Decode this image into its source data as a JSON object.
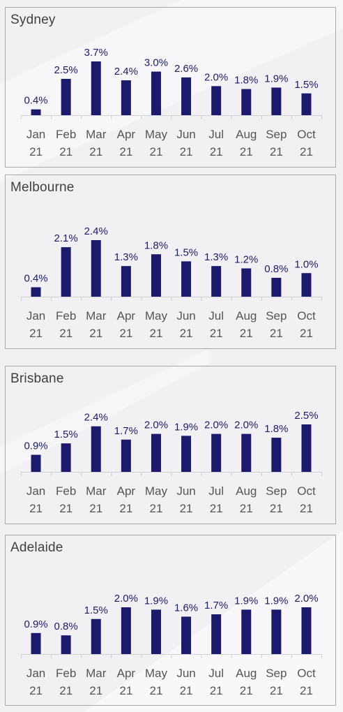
{
  "months": [
    {
      "m": "Jan",
      "y": "21"
    },
    {
      "m": "Feb",
      "y": "21"
    },
    {
      "m": "Mar",
      "y": "21"
    },
    {
      "m": "Apr",
      "y": "21"
    },
    {
      "m": "May",
      "y": "21"
    },
    {
      "m": "Jun",
      "y": "21"
    },
    {
      "m": "Jul",
      "y": "21"
    },
    {
      "m": "Aug",
      "y": "21"
    },
    {
      "m": "Sep",
      "y": "21"
    },
    {
      "m": "Oct",
      "y": "21"
    }
  ],
  "colors": {
    "bar": "#1c1a6c",
    "axis": "#cfcfd4"
  },
  "chart_data": [
    {
      "type": "bar",
      "title": "Sydney",
      "categories": [
        "Jan 21",
        "Feb 21",
        "Mar 21",
        "Apr 21",
        "May 21",
        "Jun 21",
        "Jul 21",
        "Aug 21",
        "Sep 21",
        "Oct 21"
      ],
      "values": [
        0.4,
        2.5,
        3.7,
        2.4,
        3.0,
        2.6,
        2.0,
        1.8,
        1.9,
        1.5
      ],
      "labels": [
        "0.4%",
        "2.5%",
        "3.7%",
        "2.4%",
        "3.0%",
        "2.6%",
        "2.0%",
        "1.8%",
        "1.9%",
        "1.5%"
      ],
      "ylim": [
        0,
        3.7
      ]
    },
    {
      "type": "bar",
      "title": "Melbourne",
      "categories": [
        "Jan 21",
        "Feb 21",
        "Mar 21",
        "Apr 21",
        "May 21",
        "Jun 21",
        "Jul 21",
        "Aug 21",
        "Sep 21",
        "Oct 21"
      ],
      "values": [
        0.4,
        2.1,
        2.4,
        1.3,
        1.8,
        1.5,
        1.3,
        1.2,
        0.8,
        1.0
      ],
      "labels": [
        "0.4%",
        "2.1%",
        "2.4%",
        "1.3%",
        "1.8%",
        "1.5%",
        "1.3%",
        "1.2%",
        "0.8%",
        "1.0%"
      ],
      "ylim": [
        0,
        2.4
      ]
    },
    {
      "type": "bar",
      "title": "Brisbane",
      "categories": [
        "Jan 21",
        "Feb 21",
        "Mar 21",
        "Apr 21",
        "May 21",
        "Jun 21",
        "Jul 21",
        "Aug 21",
        "Sep 21",
        "Oct 21"
      ],
      "values": [
        0.9,
        1.5,
        2.4,
        1.7,
        2.0,
        1.9,
        2.0,
        2.0,
        1.8,
        2.5
      ],
      "labels": [
        "0.9%",
        "1.5%",
        "2.4%",
        "1.7%",
        "2.0%",
        "1.9%",
        "2.0%",
        "2.0%",
        "1.8%",
        "2.5%"
      ],
      "ylim": [
        0,
        2.5
      ]
    },
    {
      "type": "bar",
      "title": "Adelaide",
      "categories": [
        "Jan 21",
        "Feb 21",
        "Mar 21",
        "Apr 21",
        "May 21",
        "Jun 21",
        "Jul 21",
        "Aug 21",
        "Sep 21",
        "Oct 21"
      ],
      "values": [
        0.9,
        0.8,
        1.5,
        2.0,
        1.9,
        1.6,
        1.7,
        1.9,
        1.9,
        2.0
      ],
      "labels": [
        "0.9%",
        "0.8%",
        "1.5%",
        "2.0%",
        "1.9%",
        "1.6%",
        "1.7%",
        "1.9%",
        "1.9%",
        "2.0%"
      ],
      "ylim": [
        0,
        2.0
      ]
    }
  ]
}
